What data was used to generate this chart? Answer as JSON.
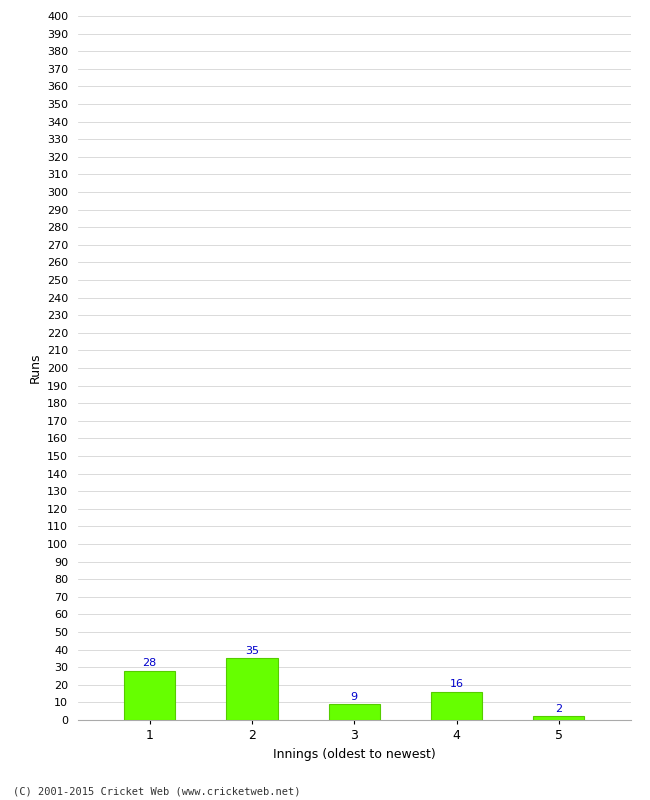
{
  "categories": [
    1,
    2,
    3,
    4,
    5
  ],
  "values": [
    28,
    35,
    9,
    16,
    2
  ],
  "bar_color": "#66ff00",
  "bar_edge_color": "#55cc00",
  "label_color": "#0000cc",
  "xlabel": "Innings (oldest to newest)",
  "ylabel": "Runs",
  "ylim": [
    0,
    400
  ],
  "ytick_step": 10,
  "background_color": "#ffffff",
  "grid_color": "#cccccc",
  "footer": "(C) 2001-2015 Cricket Web (www.cricketweb.net)"
}
